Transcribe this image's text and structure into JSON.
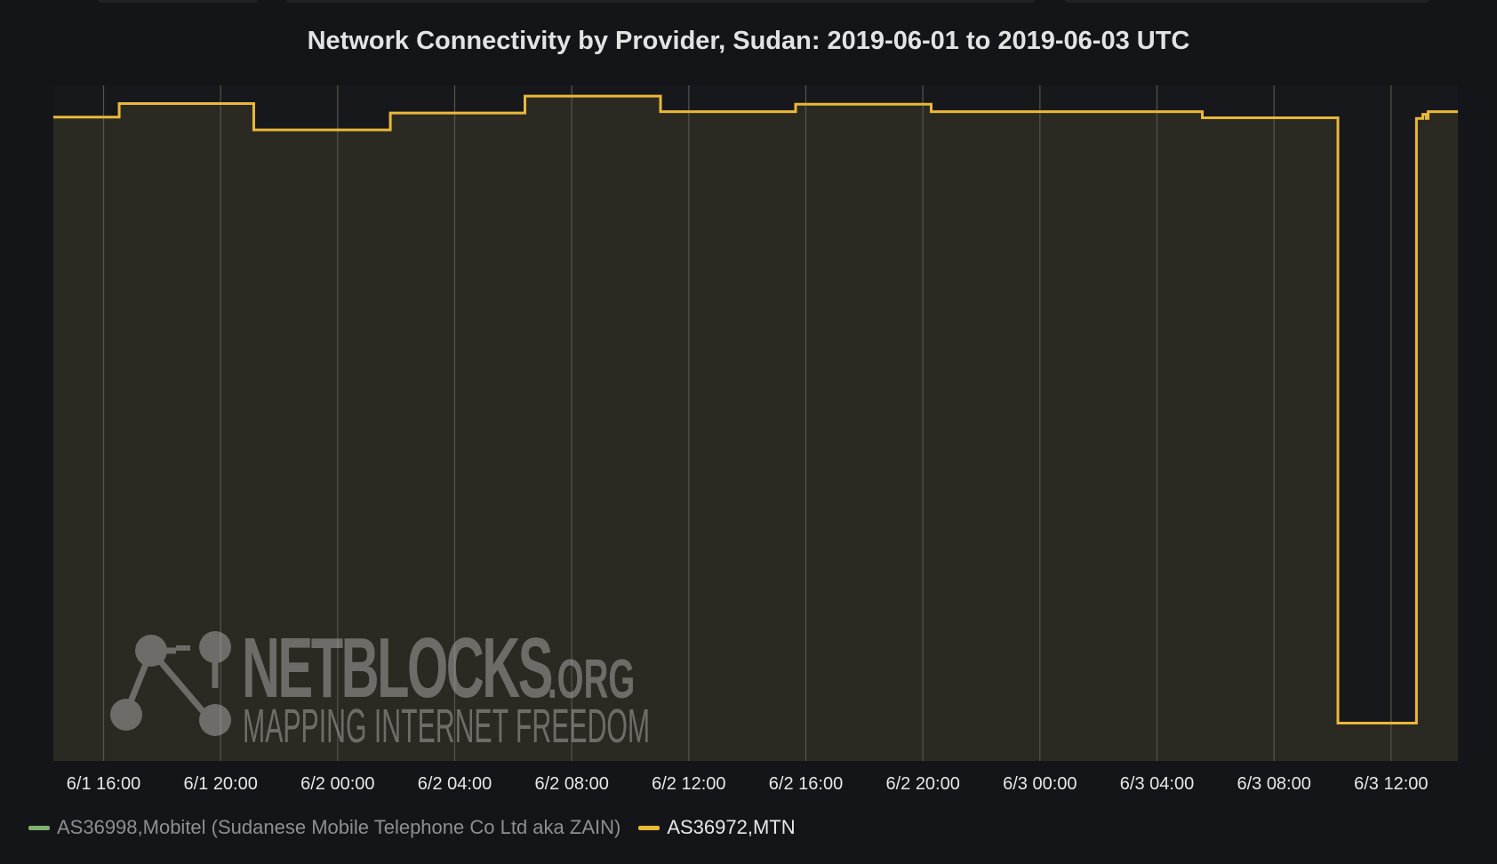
{
  "chart_data": {
    "type": "line",
    "title": "Network Connectivity by Provider, Sudan: 2019-06-01 to 2019-06-03 UTC",
    "xlabel": "",
    "ylabel": "",
    "x_ticks": [
      "6/1 16:00",
      "6/1 20:00",
      "6/2 00:00",
      "6/2 04:00",
      "6/2 08:00",
      "6/2 12:00",
      "6/2 16:00",
      "6/2 20:00",
      "6/3 00:00",
      "6/3 04:00",
      "6/3 08:00",
      "6/3 12:00"
    ],
    "x_range": [
      "2019-06-01 14:17",
      "2019-06-03 14:17"
    ],
    "y_range": [
      0,
      100
    ],
    "y_ticks_shown": false,
    "grid": "vertical lines at x ticks",
    "legend": "bottom-left",
    "series": [
      {
        "name": "AS36998,Mobitel (Sudanese Mobile Telephone Co Ltd aka ZAIN)",
        "color": "#7eb26d",
        "hidden": true,
        "points": []
      },
      {
        "name": "AS36972,MTN",
        "color": "#eab839",
        "step": true,
        "points": [
          [
            "2019-06-01 14:17",
            95.3
          ],
          [
            "2019-06-01 16:32",
            97.3
          ],
          [
            "2019-06-01 21:08",
            93.4
          ],
          [
            "2019-06-02 01:48",
            95.9
          ],
          [
            "2019-06-02 06:24",
            98.4
          ],
          [
            "2019-06-02 11:02",
            96.1
          ],
          [
            "2019-06-02 15:39",
            97.2
          ],
          [
            "2019-06-02 20:17",
            96.1
          ],
          [
            "2019-06-03 05:33",
            95.2
          ],
          [
            "2019-06-03 10:11",
            5.6
          ],
          [
            "2019-06-03 12:52",
            95.1
          ],
          [
            "2019-06-03 13:05",
            95.7
          ],
          [
            "2019-06-03 13:12",
            95.1
          ],
          [
            "2019-06-03 13:16",
            96.1
          ],
          [
            "2019-06-03 14:17",
            96.1
          ]
        ]
      }
    ]
  },
  "watermark": {
    "brand": "NETBLOCKS",
    "suffix": ".ORG",
    "tagline": "MAPPING INTERNET FREEDOM",
    "icon": "network-nodes-icon"
  },
  "colors": {
    "background": "#141518",
    "plot_fill": "#2b2a22",
    "grid": "#55554c",
    "mtn": "#eab839",
    "zain": "#7eb26d"
  }
}
